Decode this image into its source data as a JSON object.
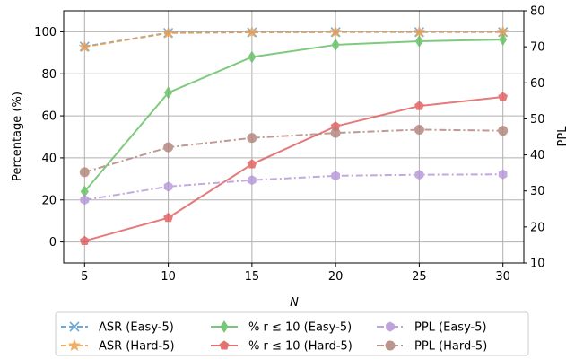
{
  "chart_data": {
    "type": "line",
    "x": [
      5,
      10,
      15,
      20,
      25,
      30
    ],
    "xlabel": "N",
    "ylabel_left": "Percentage (%)",
    "ylabel_right": "PPL",
    "x_ticks": [
      "5",
      "10",
      "15",
      "20",
      "25",
      "30"
    ],
    "y_left_ticks": [
      "0",
      "20",
      "40",
      "60",
      "80",
      "100"
    ],
    "y_right_ticks": [
      "10",
      "20",
      "30",
      "40",
      "50",
      "60",
      "70",
      "80"
    ],
    "y_left_range": [
      -10,
      110
    ],
    "y_right_range": [
      10,
      80
    ],
    "x_range": [
      3.75,
      31.25
    ],
    "grid": true,
    "legend_placement": "bottom-center",
    "series": [
      {
        "name": "ASR (Easy-5)",
        "axis": "left",
        "color": "#4f9bd6",
        "marker": "x",
        "style": "dashed",
        "values": [
          93,
          99.5,
          99.8,
          99.9,
          99.9,
          99.9
        ]
      },
      {
        "name": "ASR (Hard-5)",
        "axis": "left",
        "color": "#f0a050",
        "marker": "star",
        "style": "dashed",
        "values": [
          92.8,
          99.4,
          99.8,
          99.9,
          99.9,
          99.9
        ]
      },
      {
        "name": "% r ≤ 10 (Easy-5)",
        "axis": "left",
        "color": "#5fbe5f",
        "marker": "diamond",
        "style": "solid",
        "values": [
          24,
          71,
          88,
          93.8,
          95.5,
          96.3
        ]
      },
      {
        "name": "% r ≤ 10 (Hard-5)",
        "axis": "left",
        "color": "#df5a5a",
        "marker": "pentagon",
        "style": "solid",
        "values": [
          0.5,
          11.5,
          37,
          55,
          64.7,
          69
        ]
      },
      {
        "name": "PPL (Easy-5)",
        "axis": "right",
        "color": "#b494d8",
        "marker": "hexagon",
        "style": "dashdot",
        "values": [
          27.5,
          31.2,
          33.0,
          34.2,
          34.5,
          34.6
        ]
      },
      {
        "name": "PPL (Hard-5)",
        "axis": "right",
        "color": "#b08278",
        "marker": "circle",
        "style": "dashdot",
        "values": [
          35.2,
          42.1,
          44.7,
          46.1,
          47.0,
          46.7
        ]
      }
    ]
  }
}
